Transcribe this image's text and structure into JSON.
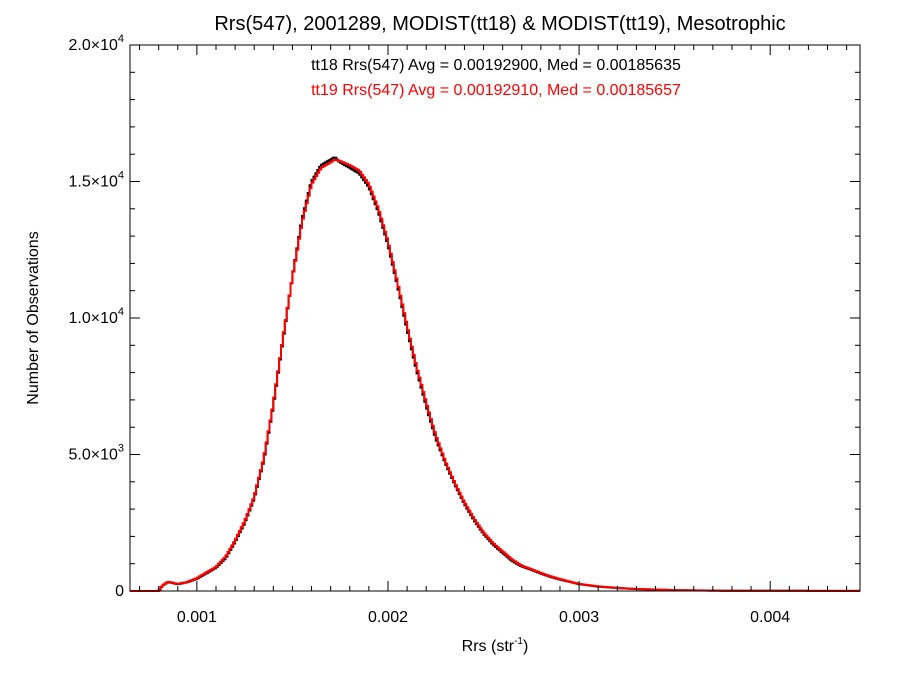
{
  "chart_data": {
    "type": "line",
    "style": "step-histogram",
    "title": "Rrs(547), 2001289, MODIST(tt18) & MODIST(tt19), Mesotrophic",
    "xlabel": "Rrs (str",
    "xlabel_sup": "-1",
    "xlabel_end": ")",
    "ylabel": "Number of Observations",
    "xlim": [
      0.00065,
      0.00447
    ],
    "ylim": [
      0,
      20000
    ],
    "grid": false,
    "x_ticks": [
      {
        "value": 0.001,
        "label": "0.001"
      },
      {
        "value": 0.002,
        "label": "0.002"
      },
      {
        "value": 0.003,
        "label": "0.003"
      },
      {
        "value": 0.004,
        "label": "0.004"
      }
    ],
    "y_ticks": [
      {
        "value": 0,
        "mantissa": "0",
        "exp": ""
      },
      {
        "value": 5000,
        "mantissa": "5.0×10",
        "exp": "3"
      },
      {
        "value": 10000,
        "mantissa": "1.0×10",
        "exp": "4"
      },
      {
        "value": 15000,
        "mantissa": "1.5×10",
        "exp": "4"
      },
      {
        "value": 20000,
        "mantissa": "2.0×10",
        "exp": "4"
      }
    ],
    "annotations": [
      {
        "text": "tt18 Rrs(547) Avg = 0.00192900, Med = 0.00185635",
        "color": "#000000"
      },
      {
        "text": "tt19 Rrs(547) Avg = 0.00192910, Med = 0.00185657",
        "color": "#ff0000"
      }
    ],
    "series": [
      {
        "color": "#000000",
        "x": [
          0.00065,
          0.0008,
          0.00082,
          0.00085,
          0.0009,
          0.00095,
          0.001,
          0.00105,
          0.0011,
          0.00115,
          0.0012,
          0.00125,
          0.0013,
          0.00135,
          0.0014,
          0.00145,
          0.0015,
          0.00155,
          0.0016,
          0.00165,
          0.0017,
          0.00172,
          0.00175,
          0.0018,
          0.00185,
          0.0019,
          0.00195,
          0.002,
          0.00205,
          0.0021,
          0.00215,
          0.0022,
          0.00225,
          0.0023,
          0.00235,
          0.0024,
          0.00245,
          0.0025,
          0.00255,
          0.0026,
          0.00265,
          0.0027,
          0.00275,
          0.0028,
          0.00285,
          0.0029,
          0.00295,
          0.003,
          0.0031,
          0.0032,
          0.0033,
          0.0034,
          0.0035,
          0.0036,
          0.0037,
          0.0038,
          0.0039,
          0.004,
          0.0041,
          0.0042,
          0.0043,
          0.0044,
          0.00447
        ],
        "y": [
          0,
          0,
          200,
          330,
          250,
          320,
          450,
          650,
          850,
          1200,
          1800,
          2500,
          3400,
          4800,
          6800,
          9200,
          11500,
          13600,
          15000,
          15600,
          15800,
          15900,
          15700,
          15500,
          15300,
          14800,
          13900,
          12700,
          11200,
          9600,
          8100,
          6800,
          5600,
          4700,
          3900,
          3200,
          2600,
          2100,
          1700,
          1400,
          1100,
          900,
          780,
          640,
          520,
          420,
          340,
          250,
          160,
          110,
          70,
          50,
          30,
          20,
          15,
          10,
          10,
          10,
          10,
          5,
          5,
          5,
          5
        ]
      },
      {
        "color": "#ff0000",
        "x": [
          0.00065,
          0.0008,
          0.00082,
          0.00085,
          0.0009,
          0.00095,
          0.001,
          0.00105,
          0.0011,
          0.00115,
          0.0012,
          0.00125,
          0.0013,
          0.00135,
          0.0014,
          0.00145,
          0.0015,
          0.00155,
          0.0016,
          0.00165,
          0.0017,
          0.00172,
          0.00175,
          0.0018,
          0.00185,
          0.0019,
          0.00195,
          0.002,
          0.00205,
          0.0021,
          0.00215,
          0.0022,
          0.00225,
          0.0023,
          0.00235,
          0.0024,
          0.00245,
          0.0025,
          0.00255,
          0.0026,
          0.00265,
          0.0027,
          0.00275,
          0.0028,
          0.00285,
          0.0029,
          0.00295,
          0.003,
          0.0031,
          0.0032,
          0.0033,
          0.0034,
          0.0035,
          0.0036,
          0.0037,
          0.0038,
          0.0039,
          0.004,
          0.0041,
          0.0042,
          0.0043,
          0.0044,
          0.00447
        ],
        "y": [
          0,
          0,
          210,
          340,
          260,
          330,
          470,
          680,
          880,
          1250,
          1850,
          2550,
          3450,
          4850,
          6850,
          9250,
          11500,
          13500,
          14900,
          15500,
          15700,
          15800,
          15750,
          15600,
          15400,
          14900,
          14000,
          12800,
          11300,
          9700,
          8200,
          6900,
          5700,
          4750,
          3950,
          3250,
          2650,
          2150,
          1750,
          1450,
          1150,
          930,
          800,
          660,
          540,
          440,
          350,
          260,
          170,
          115,
          75,
          55,
          35,
          25,
          15,
          10,
          10,
          10,
          10,
          5,
          5,
          5,
          5
        ]
      }
    ]
  }
}
